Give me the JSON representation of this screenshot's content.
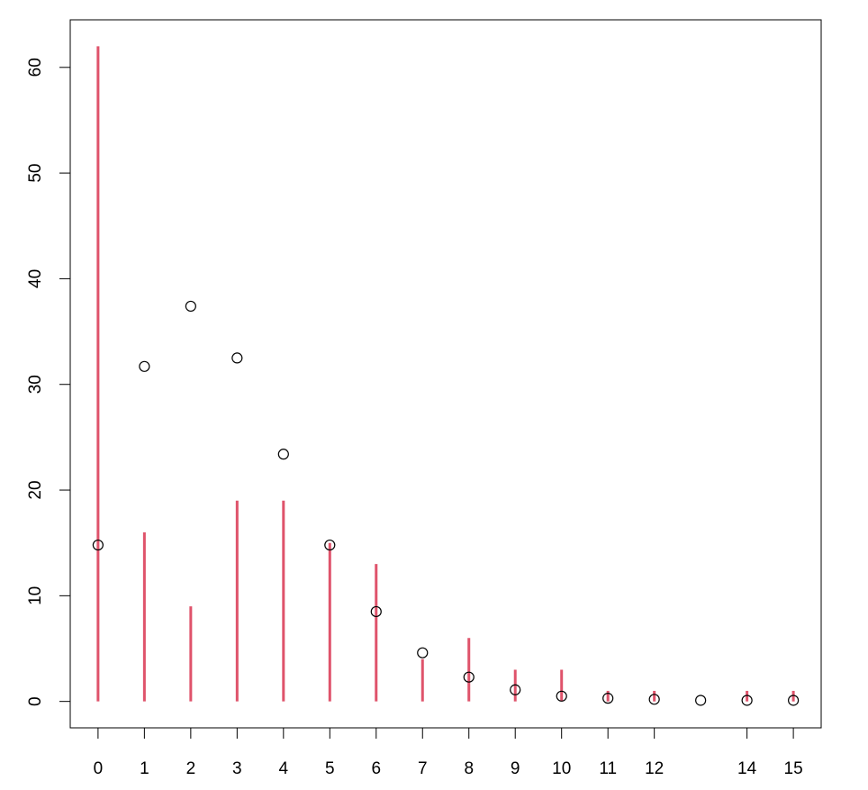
{
  "chart_data": {
    "type": "scatter",
    "title": "",
    "xlabel": "",
    "ylabel": "",
    "xlim": [
      -0.6,
      15.6
    ],
    "ylim": [
      -2.5,
      64.5
    ],
    "x_ticks": [
      0,
      1,
      2,
      3,
      4,
      5,
      6,
      7,
      8,
      9,
      10,
      11,
      12,
      14,
      15
    ],
    "x_tick_labels": [
      "0",
      "1",
      "2",
      "3",
      "4",
      "5",
      "6",
      "7",
      "8",
      "9",
      "10",
      "11",
      "12",
      "14",
      "15"
    ],
    "y_ticks": [
      0,
      10,
      20,
      30,
      40,
      50,
      60
    ],
    "y_tick_labels": [
      "0",
      "10",
      "20",
      "30",
      "40",
      "50",
      "60"
    ],
    "grid": false,
    "series": [
      {
        "kind": "vertical-lines",
        "color": "#DF536B",
        "x": [
          0,
          1,
          2,
          3,
          4,
          5,
          6,
          7,
          8,
          9,
          10,
          11,
          12,
          14,
          15
        ],
        "y": [
          62,
          16,
          9,
          19,
          19,
          15,
          13,
          4,
          6,
          3,
          3,
          1,
          1,
          1,
          1
        ]
      },
      {
        "kind": "points",
        "color": "#000000",
        "marker": "open-circle",
        "x": [
          0,
          1,
          2,
          3,
          4,
          5,
          6,
          7,
          8,
          9,
          10,
          11,
          12,
          13,
          14,
          15
        ],
        "y": [
          14.8,
          31.7,
          37.4,
          32.5,
          23.4,
          14.8,
          8.5,
          4.6,
          2.3,
          1.1,
          0.5,
          0.3,
          0.2,
          0.1,
          0.1,
          0.1
        ]
      }
    ]
  }
}
